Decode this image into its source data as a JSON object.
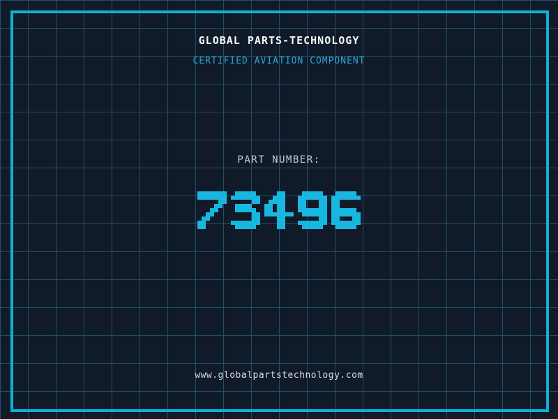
{
  "header": {
    "title": "GLOBAL PARTS-TECHNOLOGY",
    "subtitle": "CERTIFIED AVIATION COMPONENT"
  },
  "part": {
    "label": "PART NUMBER:",
    "number": "73496"
  },
  "footer": {
    "website": "www.globalpartstechnology.com"
  },
  "colors": {
    "background": "#101a29",
    "grid_line": "#1e5068",
    "frame_border": "#0cb1d7",
    "title_text": "#f5f7f9",
    "subtitle_text": "#2ca6d6",
    "part_label_text": "#c7ccd3",
    "part_number_digits": "#17b7e0",
    "website_text": "#d6dade"
  }
}
